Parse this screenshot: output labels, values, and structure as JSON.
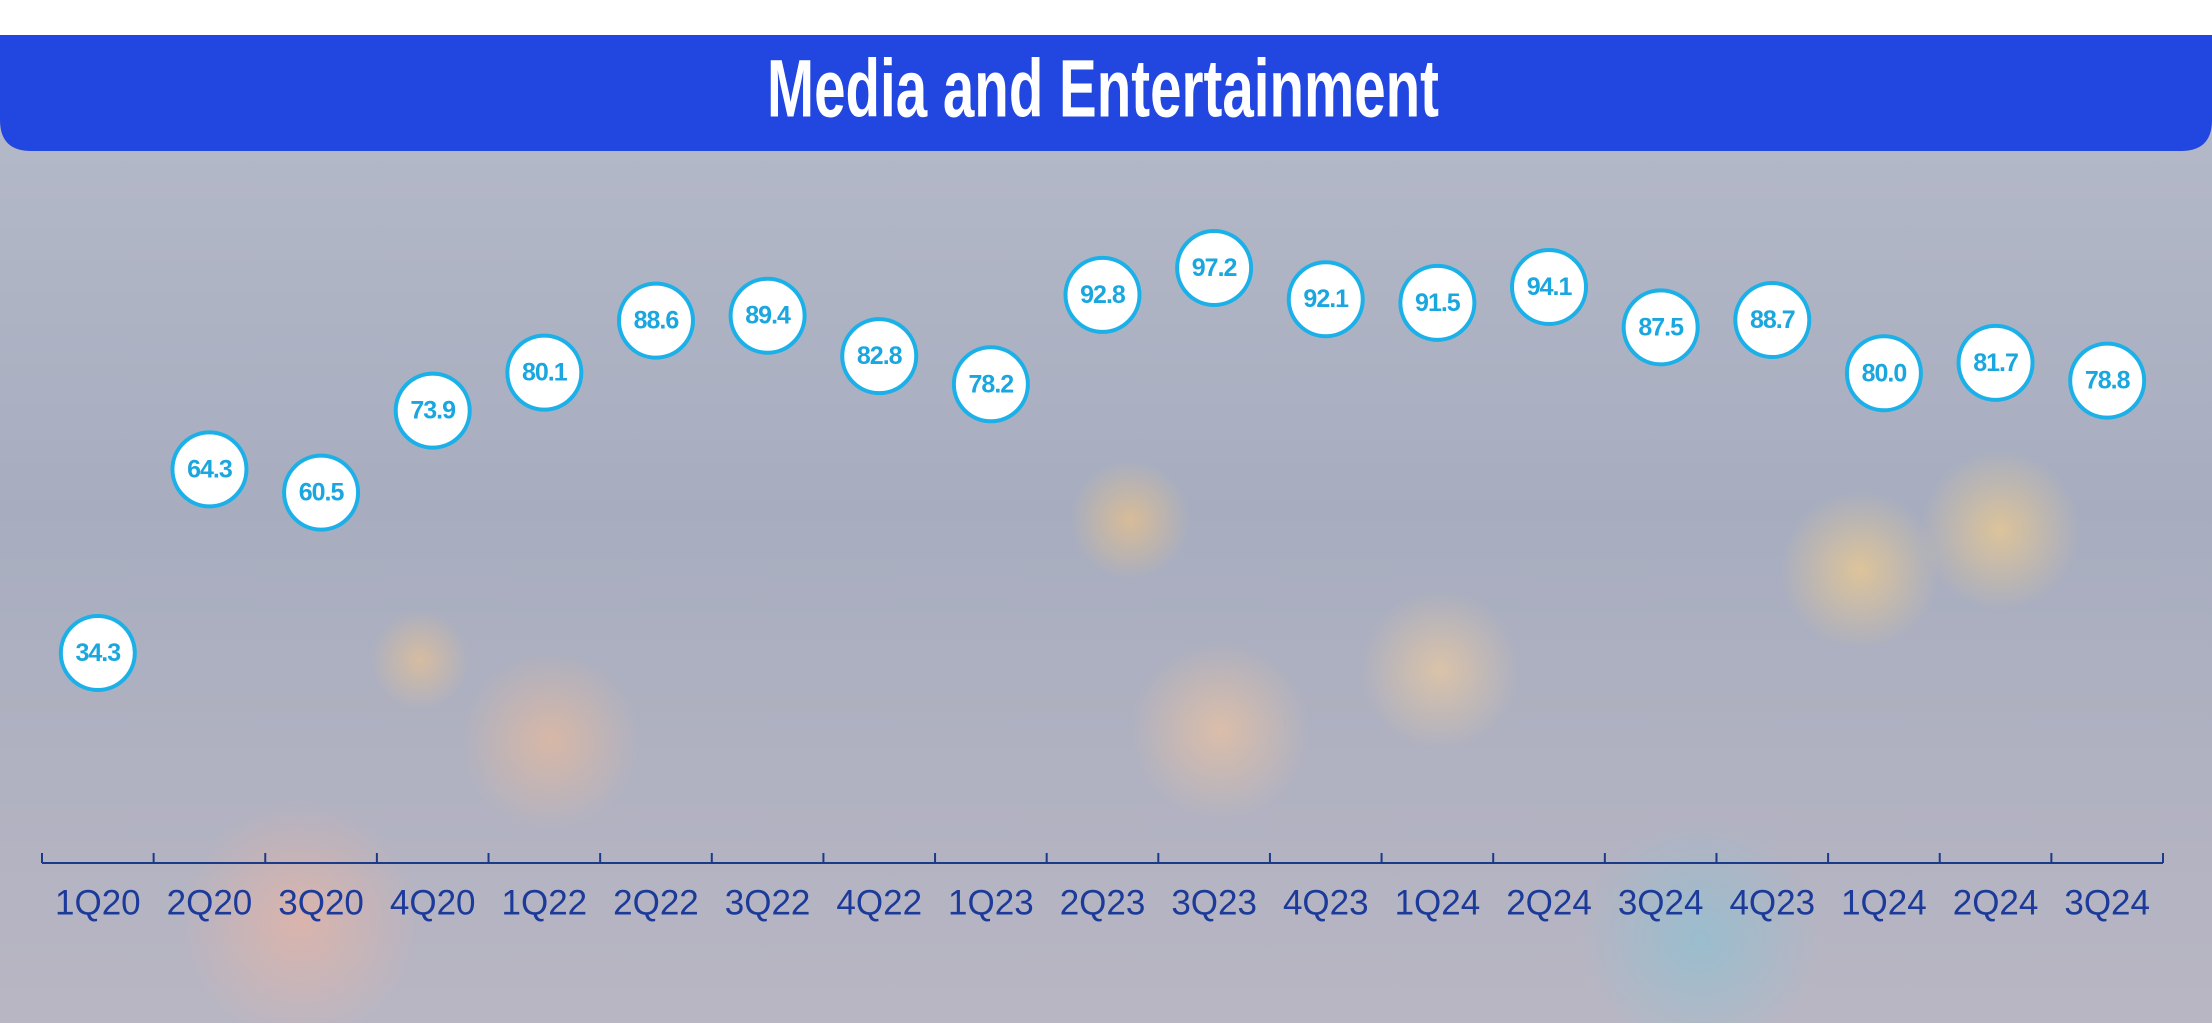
{
  "chart_data": {
    "type": "line",
    "title": "Media and Entertainment",
    "categories": [
      "1Q20",
      "2Q20",
      "3Q20",
      "4Q20",
      "1Q22",
      "2Q22",
      "3Q22",
      "4Q22",
      "1Q23",
      "2Q23",
      "3Q23",
      "4Q23",
      "1Q24",
      "2Q24",
      "3Q24",
      "4Q23",
      "1Q24",
      "2Q24",
      "3Q24"
    ],
    "values": [
      34.3,
      64.3,
      60.5,
      73.9,
      80.1,
      88.6,
      89.4,
      82.8,
      78.2,
      92.8,
      97.2,
      92.1,
      91.5,
      94.1,
      87.5,
      88.7,
      80.0,
      81.7,
      78.8
    ],
    "value_labels": [
      "34.3",
      "64.3",
      "60.5",
      "73.9",
      "80.1",
      "88.6",
      "89.4",
      "82.8",
      "78.2",
      "92.8",
      "97.2",
      "92.1",
      "91.5",
      "94.1",
      "87.5",
      "88.7",
      "80.0",
      "81.7",
      "78.8"
    ],
    "color": "#2447e0",
    "marker_color": "#1cb0e8"
  }
}
